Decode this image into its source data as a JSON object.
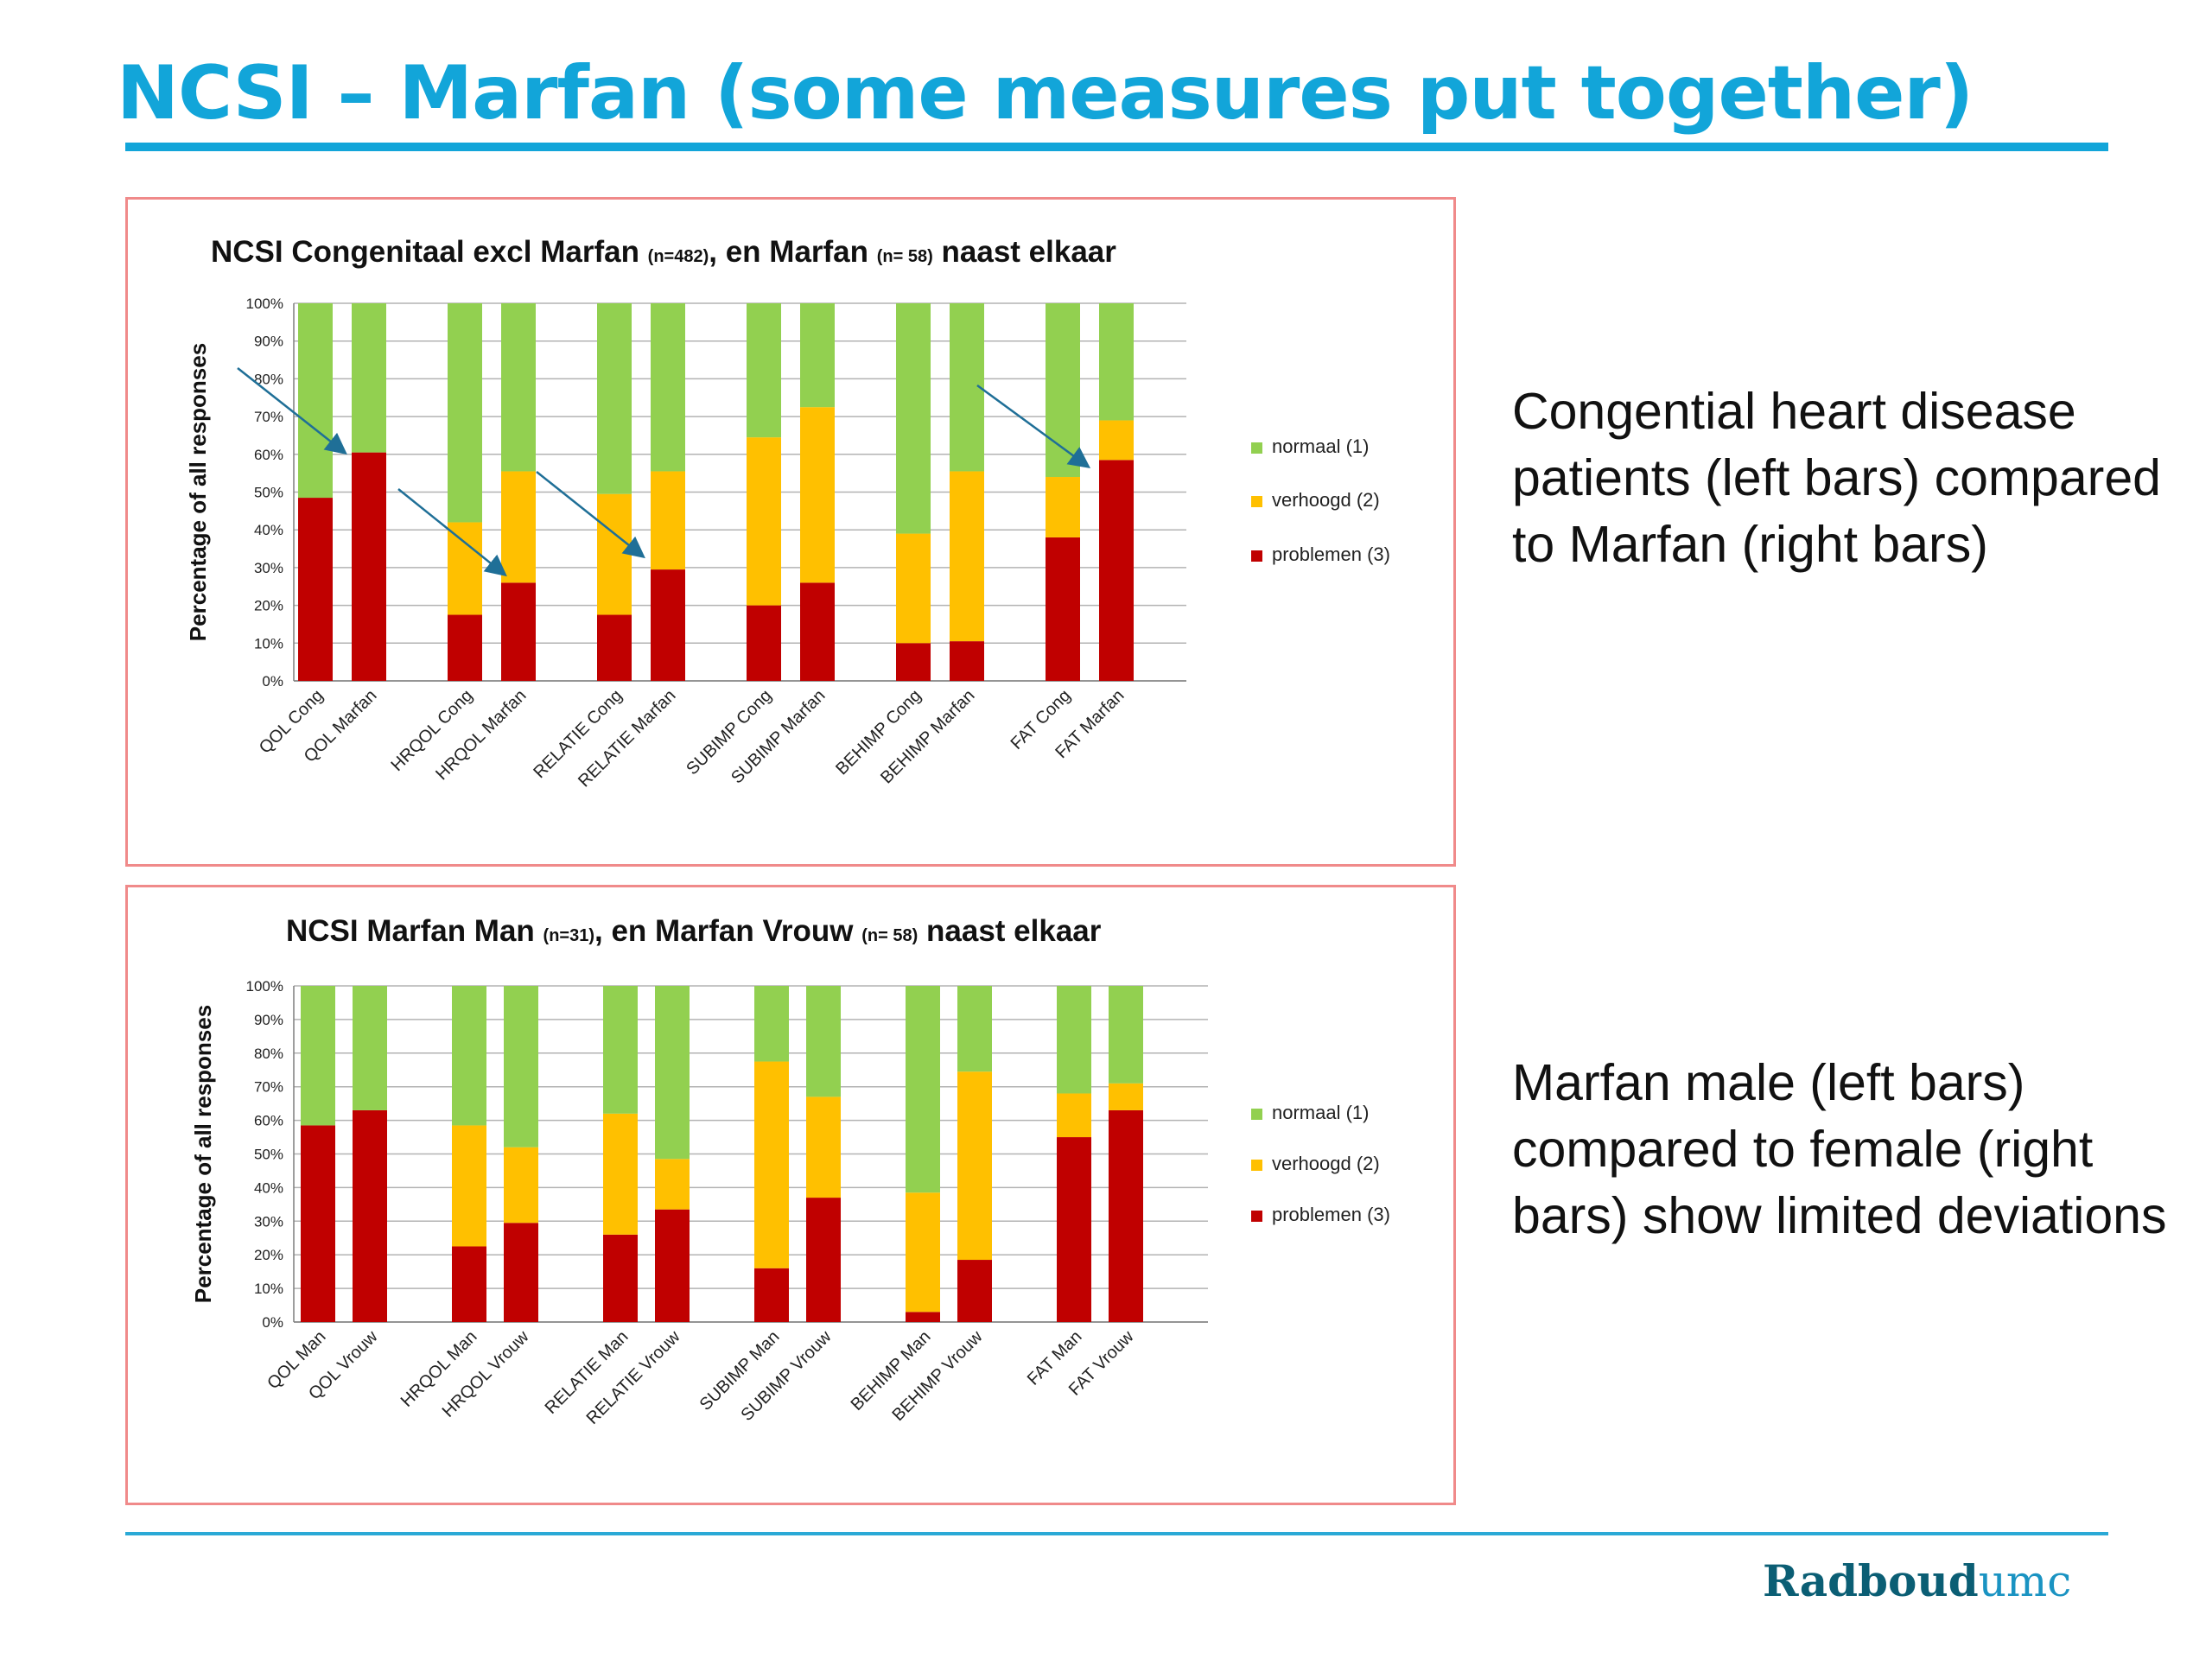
{
  "slide": {
    "title": "NCSI – Marfan (some measures put together)",
    "top_text": "Congential heart disease patients (left bars) compared to Marfan (right bars)",
    "bottom_text": "Marfan male (left bars) compared to female (right bars) show limited deviations",
    "logo": {
      "bold": "Radboud",
      "light": "umc"
    }
  },
  "colors": {
    "normaal": "#92d050",
    "verhoogd": "#ffc000",
    "problemen": "#c00000",
    "arrow": "#1f6f97",
    "title": "#12a5d9",
    "frame": "#f08a8a"
  },
  "chart_data": [
    {
      "type": "bar",
      "stacked": true,
      "title": "NCSI Congenitaal excl Marfan (n=482), en Marfan (n= 58) naast elkaar",
      "title_parts": [
        {
          "text": "NCSI Congenitaal excl Marfan ",
          "small": false
        },
        {
          "text": "(n=482)",
          "small": true
        },
        {
          "text": ", en Marfan ",
          "small": false
        },
        {
          "text": "(n= 58)",
          "small": true
        },
        {
          "text": "  naast elkaar",
          "small": false
        }
      ],
      "ylabel": "Percentage of all responses",
      "ylim": [
        0,
        100
      ],
      "yticks": [
        "0%",
        "10%",
        "20%",
        "30%",
        "40%",
        "50%",
        "60%",
        "70%",
        "80%",
        "90%",
        "100%"
      ],
      "grid": true,
      "legend": "right",
      "categories": [
        "QOL Cong",
        "QOL Marfan",
        "HRQOL Cong",
        "HRQOL Marfan",
        "RELATIE Cong",
        "RELATIE Marfan",
        "SUBIMP Cong",
        "SUBIMP Marfan",
        "BEHIMP Cong",
        "BEHIMP Marfan",
        "FAT Cong",
        "FAT Marfan"
      ],
      "series": [
        {
          "name": "problemen (3)",
          "values": [
            48.5,
            60.5,
            17.5,
            26,
            17.5,
            29.5,
            20,
            26,
            10,
            10.5,
            38,
            58.5
          ]
        },
        {
          "name": "verhoogd (2)",
          "values": [
            0,
            0,
            24.5,
            29.5,
            32,
            26,
            44.5,
            46.5,
            29,
            45,
            16,
            10.5
          ]
        },
        {
          "name": "normaal (1)",
          "values": [
            51.5,
            39.5,
            58,
            44.5,
            50.5,
            44.5,
            35.5,
            27.5,
            61,
            44.5,
            46,
            31
          ]
        }
      ],
      "annotations": "blue arrows pointing from each Cong bar to the Marfan bar for QOL, HRQOL, RELATIE and FAT"
    },
    {
      "type": "bar",
      "stacked": true,
      "title": "NCSI Marfan Man (n=31), en Marfan Vrouw (n= 58) naast elkaar",
      "title_parts": [
        {
          "text": "NCSI  Marfan Man ",
          "small": false
        },
        {
          "text": "(n=31)",
          "small": true
        },
        {
          "text": ", en Marfan Vrouw   ",
          "small": false
        },
        {
          "text": "(n= 58)",
          "small": true
        },
        {
          "text": "  naast elkaar",
          "small": false
        }
      ],
      "ylabel": "Percentage of all responses",
      "ylim": [
        0,
        100
      ],
      "yticks": [
        "0%",
        "10%",
        "20%",
        "30%",
        "40%",
        "50%",
        "60%",
        "70%",
        "80%",
        "90%",
        "100%"
      ],
      "grid": true,
      "legend": "right",
      "categories": [
        "QOL Man",
        "QOL Vrouw",
        "HRQOL Man",
        "HRQOL Vrouw",
        "RELATIE Man",
        "RELATIE Vrouw",
        "SUBIMP Man",
        "SUBIMP Vrouw",
        "BEHIMP Man",
        "BEHIMP Vrouw",
        "FAT Man",
        "FAT Vrouw"
      ],
      "series": [
        {
          "name": "problemen (3)",
          "values": [
            58.5,
            63,
            22.5,
            29.5,
            26,
            33.5,
            16,
            37,
            3,
            18.5,
            55,
            63
          ]
        },
        {
          "name": "verhoogd (2)",
          "values": [
            0,
            0,
            36,
            22.5,
            36,
            15,
            61.5,
            30,
            35.5,
            56,
            13,
            8
          ]
        },
        {
          "name": "normaal (1)",
          "values": [
            41.5,
            37,
            41.5,
            48,
            38,
            51.5,
            22.5,
            33,
            61.5,
            25.5,
            32,
            29
          ]
        }
      ]
    }
  ]
}
